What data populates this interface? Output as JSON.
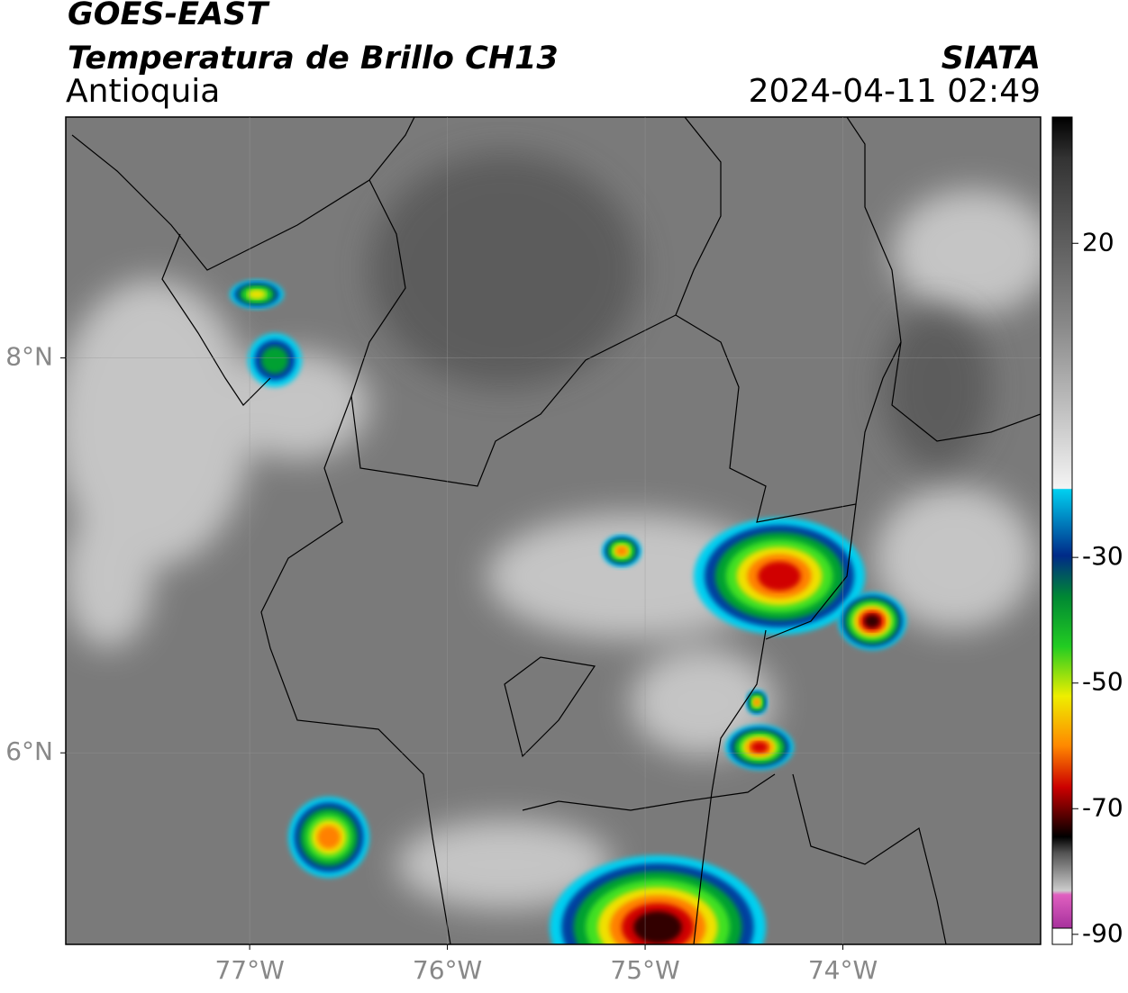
{
  "header": {
    "title": "GOES-EAST",
    "subtitle": "Temperatura de Brillo CH13",
    "region": "Antioquia",
    "source": "SIATA",
    "datetime": "2024-04-11 02:49"
  },
  "map": {
    "xlim": [
      -77.93,
      -73.0
    ],
    "ylim": [
      5.03,
      9.22
    ],
    "xticks": [
      {
        "value": -77,
        "label": "77°W"
      },
      {
        "value": -76,
        "label": "76°W"
      },
      {
        "value": -75,
        "label": "75°W"
      },
      {
        "value": -74,
        "label": "74°W"
      }
    ],
    "yticks": [
      {
        "value": 8,
        "label": "8°N"
      },
      {
        "value": 6,
        "label": "6°N"
      }
    ]
  },
  "colorbar": {
    "lim": [
      -91.6,
      40.1
    ],
    "ticks": [
      20,
      -30,
      -50,
      -70,
      -90
    ]
  }
}
